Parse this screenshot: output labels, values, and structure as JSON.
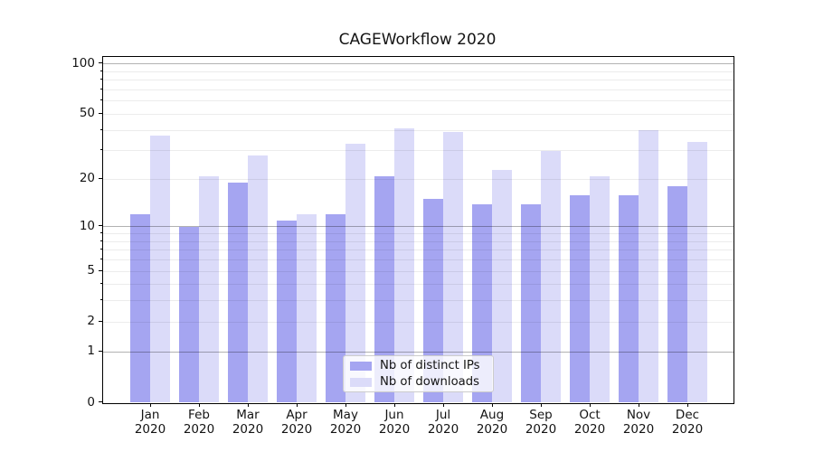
{
  "title": "CAGEWorkflow 2020",
  "chart_data": {
    "type": "bar",
    "title": "CAGEWorkflow 2020",
    "categories": [
      "Jan 2020",
      "Feb 2020",
      "Mar 2020",
      "Apr 2020",
      "May 2020",
      "Jun 2020",
      "Jul 2020",
      "Aug 2020",
      "Sep 2020",
      "Oct 2020",
      "Nov 2020",
      "Dec 2020"
    ],
    "x_tick_months": [
      "Jan",
      "Feb",
      "Mar",
      "Apr",
      "May",
      "Jun",
      "Jul",
      "Aug",
      "Sep",
      "Oct",
      "Nov",
      "Dec"
    ],
    "x_tick_year": "2020",
    "series": [
      {
        "name": "Nb of distinct IPs",
        "color": "#a5a5f1",
        "values": [
          12,
          10,
          19,
          11,
          12,
          21,
          15,
          14,
          14,
          16,
          16,
          18
        ]
      },
      {
        "name": "Nb of downloads",
        "color": "#dbdbf9",
        "values": [
          37,
          21,
          28,
          12,
          33,
          41,
          39,
          23,
          30,
          21,
          40,
          34
        ]
      }
    ],
    "xlabel": "",
    "ylabel": "",
    "yscale": "log1p",
    "ylim": [
      0,
      110
    ],
    "ytick_labels": [
      100,
      50,
      20,
      10,
      5,
      2,
      1,
      0
    ],
    "yticks_major_grid": [
      1,
      10,
      100
    ],
    "yticks_minor_grid": [
      2,
      3,
      4,
      5,
      6,
      7,
      8,
      9,
      20,
      30,
      40,
      50,
      60,
      70,
      80,
      90
    ],
    "grid": true,
    "legend_position": "lower center",
    "colors": {
      "bar_ips": "#a5a5f1",
      "bar_downloads": "#dbdbf9",
      "major_grid": "#b2b2b2",
      "minor_grid": "#ebebeb",
      "spine": "#000000",
      "text": "#141414"
    }
  }
}
